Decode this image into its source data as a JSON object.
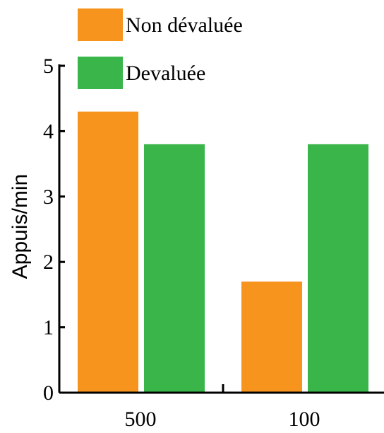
{
  "chart_data": {
    "type": "bar",
    "categories": [
      "500",
      "100"
    ],
    "series": [
      {
        "name": "Non dévaluée",
        "color": "#F7941D",
        "values": [
          4.3,
          1.7
        ]
      },
      {
        "name": "Devaluée",
        "color": "#39B54A",
        "values": [
          3.8,
          3.8
        ]
      }
    ],
    "title": "",
    "xlabel": "",
    "ylabel": "Appuis/min",
    "ylim": [
      0,
      5
    ],
    "yticks": [
      "0",
      "1",
      "2",
      "3",
      "4",
      "5"
    ],
    "grid": false,
    "legend": "top-left"
  }
}
